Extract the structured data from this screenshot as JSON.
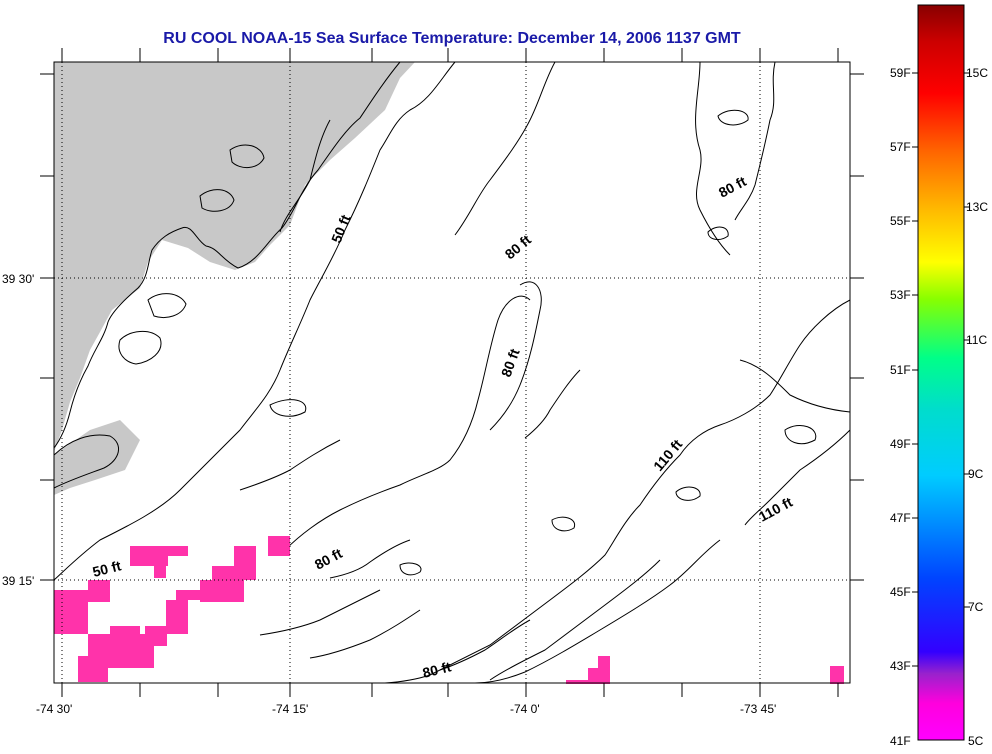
{
  "title": "RU COOL  NOAA-15  Sea Surface Temperature:  December 14, 2006 1137 GMT",
  "map": {
    "longitude_ticks": [
      "-74 30'",
      "-74 15'",
      "-74 0'",
      "-73 45'"
    ],
    "latitude_ticks": [
      "39 30'",
      "39 15'"
    ],
    "contour_labels": [
      "50 ft",
      "50 ft",
      "80 ft",
      "80 ft",
      "80 ft",
      "80 ft",
      "80 ft",
      "110 ft",
      "110 ft"
    ],
    "land_color": "#c8c8c8",
    "sst_pixel_color": "#ff33aa"
  },
  "colorbar": {
    "fahrenheit_labels": [
      "59F",
      "57F",
      "55F",
      "53F",
      "51F",
      "49F",
      "47F",
      "45F",
      "43F",
      "41F"
    ],
    "celsius_labels": [
      "15C",
      "13C",
      "11C",
      "9C",
      "7C",
      "5C"
    ],
    "range_f": [
      41,
      61
    ],
    "range_c": [
      5,
      16
    ]
  }
}
